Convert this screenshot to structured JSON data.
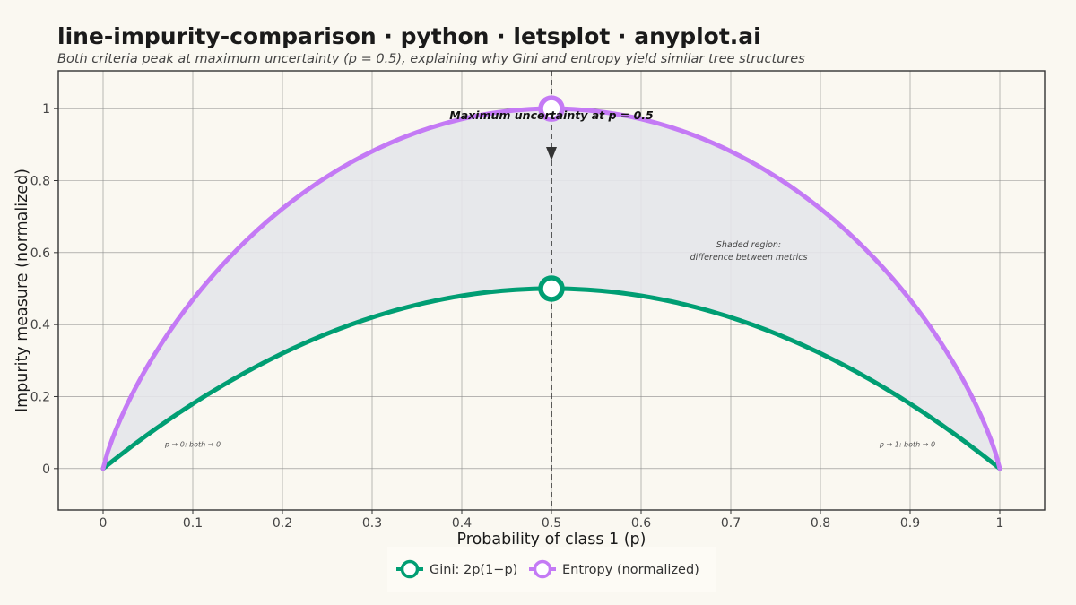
{
  "header": {
    "title": "line-impurity-comparison · python · letsplot · anyplot.ai",
    "subtitle": "Both criteria peak at maximum uncertainty (p = 0.5), explaining why Gini and entropy yield similar tree structures"
  },
  "chart_data": {
    "type": "line",
    "title": "line-impurity-comparison · python · letsplot · anyplot.ai",
    "subtitle": "Both criteria peak at maximum uncertainty (p = 0.5), explaining why Gini and entropy yield similar tree structures",
    "xlabel": "Probability of class 1 (p)",
    "ylabel": "Impurity measure (normalized)",
    "xlim": [
      -0.05,
      1.05
    ],
    "ylim": [
      -0.115,
      1.105
    ],
    "x_ticks": [
      0,
      0.1,
      0.2,
      0.3,
      0.4,
      0.5,
      0.6,
      0.7,
      0.8,
      0.9,
      1
    ],
    "x_tick_labels": [
      "0",
      "0.1",
      "0.2",
      "0.3",
      "0.4",
      "0.5",
      "0.6",
      "0.7",
      "0.8",
      "0.9",
      "1"
    ],
    "y_ticks": [
      0,
      0.2,
      0.4,
      0.6,
      0.8,
      1
    ],
    "y_tick_labels": [
      "0",
      "0.2",
      "0.4",
      "0.6",
      "0.8",
      "1"
    ],
    "grid": true,
    "legend_position": "bottom",
    "x": [
      0,
      0.05,
      0.1,
      0.15,
      0.2,
      0.25,
      0.3,
      0.35,
      0.4,
      0.45,
      0.5,
      0.55,
      0.6,
      0.65,
      0.7,
      0.75,
      0.8,
      0.85,
      0.9,
      0.95,
      1
    ],
    "series": [
      {
        "name": "Gini: 2p(1−p)",
        "color": "#009E73",
        "values": [
          0,
          0.095,
          0.18,
          0.255,
          0.32,
          0.375,
          0.42,
          0.455,
          0.48,
          0.495,
          0.5,
          0.495,
          0.48,
          0.455,
          0.42,
          0.375,
          0.32,
          0.255,
          0.18,
          0.095,
          0
        ]
      },
      {
        "name": "Entropy (normalized)",
        "color": "#C47AF5",
        "values": [
          0,
          0.286,
          0.469,
          0.61,
          0.722,
          0.811,
          0.881,
          0.934,
          0.971,
          0.993,
          1,
          0.993,
          0.971,
          0.934,
          0.881,
          0.811,
          0.722,
          0.61,
          0.469,
          0.286,
          0
        ]
      }
    ],
    "peak_markers": [
      {
        "series": "Gini: 2p(1−p)",
        "x": 0.5,
        "y": 0.5
      },
      {
        "series": "Entropy (normalized)",
        "x": 0.5,
        "y": 1
      }
    ],
    "shaded_region": {
      "between": [
        "Gini: 2p(1−p)",
        "Entropy (normalized)"
      ],
      "color": "#E4E6EA"
    },
    "vline": {
      "x": 0.5,
      "style": "dashed"
    },
    "annotations": {
      "peak": {
        "text": "Maximum uncertainty at p = 0.5",
        "x": 0.5,
        "y": 0.975
      },
      "shaded_line1": {
        "text": "Shaded region:",
        "x": 0.72,
        "y": 0.615
      },
      "shaded_line2": {
        "text": "difference between metrics",
        "x": 0.72,
        "y": 0.59
      },
      "left": {
        "text": "p → 0: both → 0",
        "x": 0.1,
        "y": 0.06
      },
      "right": {
        "text": "p → 1: both → 0",
        "x": 0.897,
        "y": 0.06
      }
    }
  }
}
